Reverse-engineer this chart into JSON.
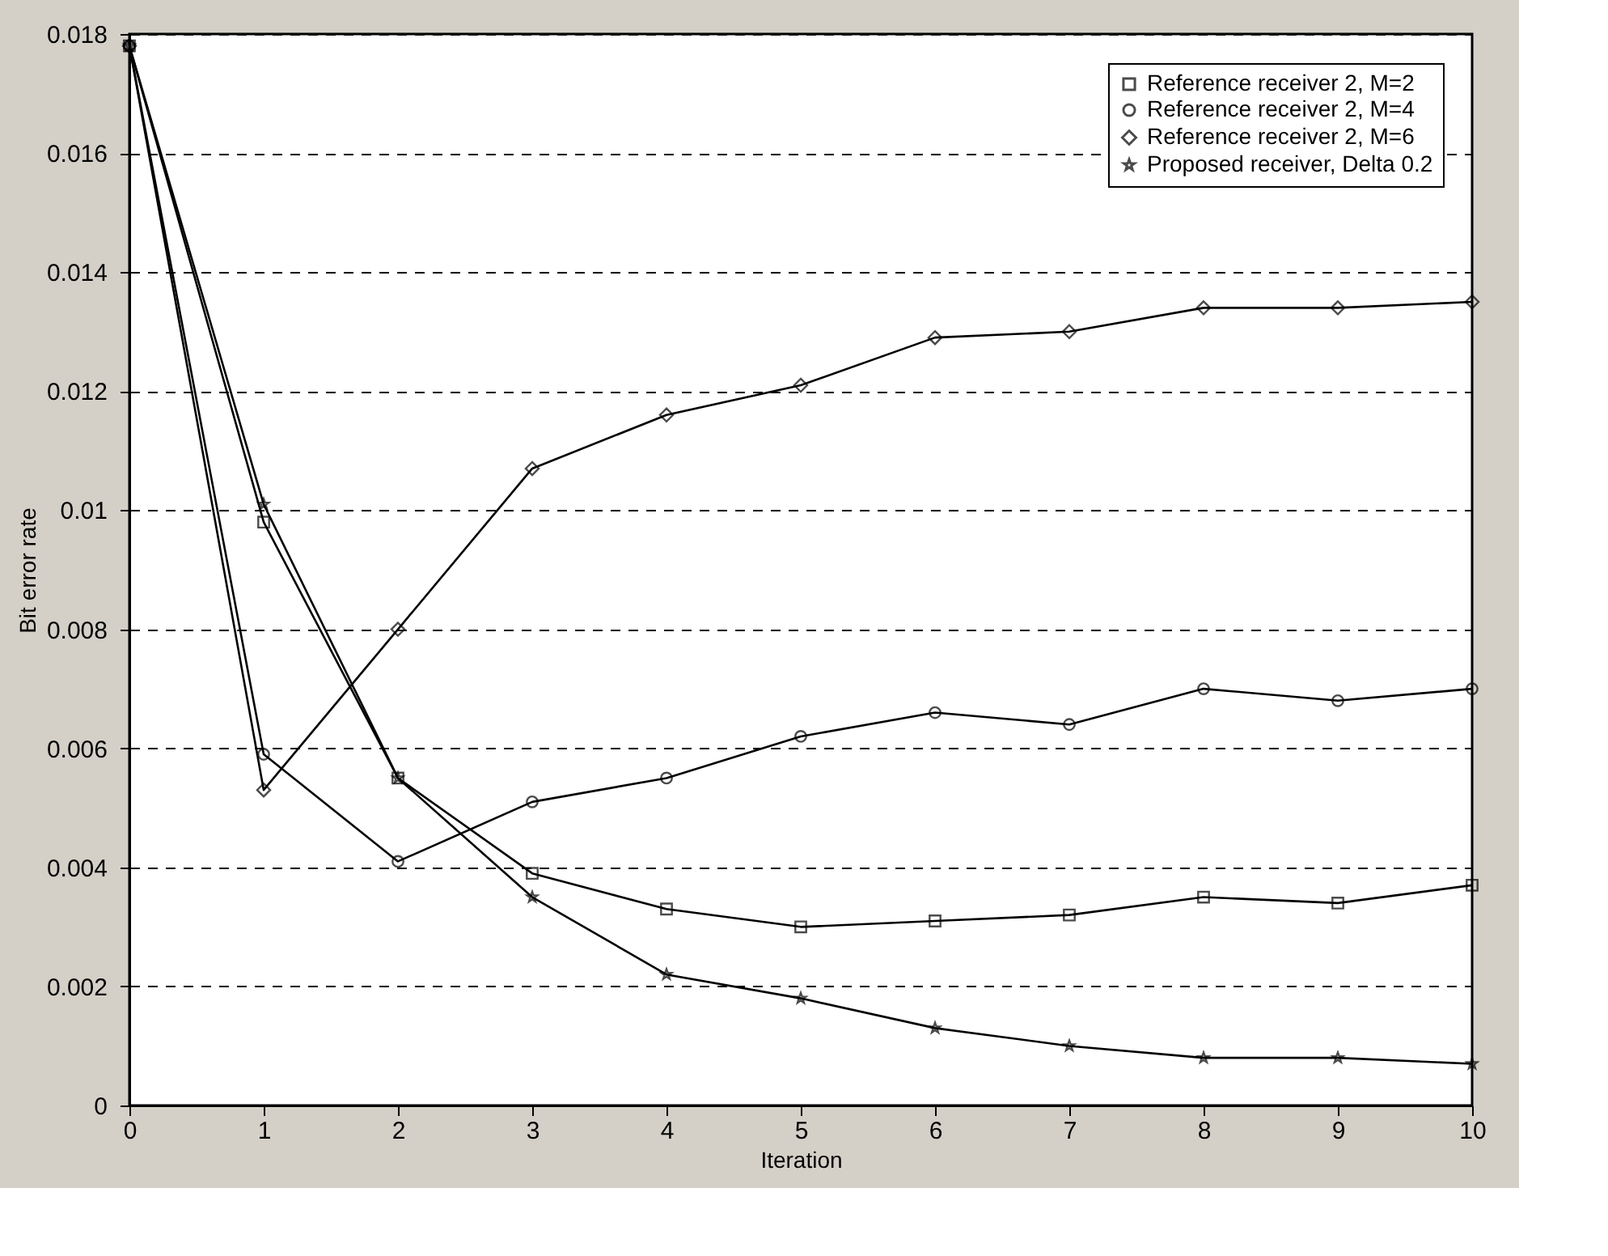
{
  "chart_data": {
    "type": "line",
    "xlabel": "Iteration",
    "ylabel": "Bit error rate",
    "x": [
      0,
      1,
      2,
      3,
      4,
      5,
      6,
      7,
      8,
      9,
      10
    ],
    "series": [
      {
        "name": "Reference receiver 2, M=2",
        "color": "#000000",
        "marker": "square",
        "values": [
          0.0178,
          0.0098,
          0.0055,
          0.0039,
          0.0033,
          0.003,
          0.0031,
          0.0032,
          0.0035,
          0.0034,
          0.0037
        ]
      },
      {
        "name": "Reference receiver 2, M=4",
        "color": "#000000",
        "marker": "circle",
        "values": [
          0.0178,
          0.0059,
          0.0041,
          0.0051,
          0.0055,
          0.0062,
          0.0066,
          0.0064,
          0.007,
          0.0068,
          0.007
        ]
      },
      {
        "name": "Reference receiver 2, M=6",
        "color": "#000000",
        "marker": "diamond",
        "values": [
          0.0178,
          0.0053,
          0.008,
          0.0107,
          0.0116,
          0.0121,
          0.0129,
          0.013,
          0.0134,
          0.0134,
          0.0135
        ]
      },
      {
        "name": "Proposed receiver, Delta 0.2",
        "color": "#000000",
        "marker": "star",
        "values": [
          0.0178,
          0.0101,
          0.0055,
          0.0035,
          0.0022,
          0.0018,
          0.0013,
          0.001,
          0.0008,
          0.0008,
          0.0007
        ]
      }
    ],
    "xlim": [
      0,
      10
    ],
    "xticks": [
      0,
      1,
      2,
      3,
      4,
      5,
      6,
      7,
      8,
      9,
      10
    ],
    "ylim": [
      0,
      0.018
    ],
    "yticks": [
      0,
      0.002,
      0.004,
      0.006,
      0.008,
      0.01,
      0.012,
      0.014,
      0.016,
      0.018
    ],
    "grid": "y",
    "legend": "top right",
    "line_style": "solid"
  }
}
